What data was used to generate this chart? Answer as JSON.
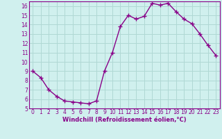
{
  "x": [
    0,
    1,
    2,
    3,
    4,
    5,
    6,
    7,
    8,
    9,
    10,
    11,
    12,
    13,
    14,
    15,
    16,
    17,
    18,
    19,
    20,
    21,
    22,
    23
  ],
  "y": [
    9.0,
    8.3,
    7.0,
    6.3,
    5.8,
    5.7,
    5.6,
    5.5,
    5.8,
    9.0,
    11.0,
    13.8,
    15.0,
    14.6,
    14.9,
    16.3,
    16.1,
    16.3,
    15.4,
    14.6,
    14.1,
    13.0,
    11.8,
    10.7
  ],
  "line_color": "#880088",
  "marker": "+",
  "marker_size": 4,
  "bg_color": "#d0f0ee",
  "grid_color": "#b0d8d4",
  "xlabel": "Windchill (Refroidissement éolien,°C)",
  "xlabel_color": "#880088",
  "tick_color": "#880088",
  "ylim": [
    5,
    16.5
  ],
  "xlim": [
    -0.5,
    23.5
  ],
  "yticks": [
    5,
    6,
    7,
    8,
    9,
    10,
    11,
    12,
    13,
    14,
    15,
    16
  ],
  "xticks": [
    0,
    1,
    2,
    3,
    4,
    5,
    6,
    7,
    8,
    9,
    10,
    11,
    12,
    13,
    14,
    15,
    16,
    17,
    18,
    19,
    20,
    21,
    22,
    23
  ],
  "tick_fontsize": 5.5,
  "xlabel_fontsize": 6.0,
  "linewidth": 1.0,
  "marker_linewidth": 1.0
}
